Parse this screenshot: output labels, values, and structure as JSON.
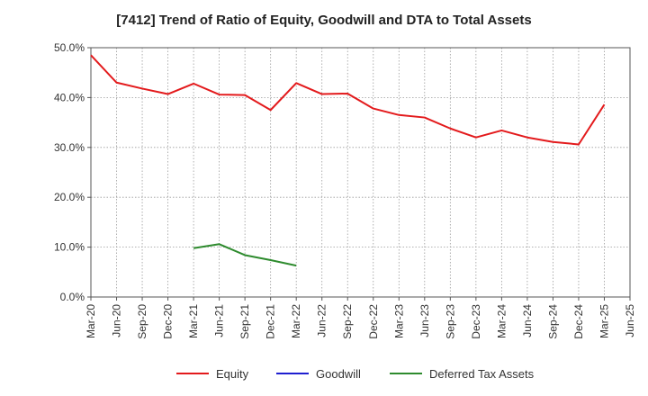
{
  "chart_data": {
    "type": "line",
    "title": "[7412]  Trend of Ratio of Equity, Goodwill and DTA to Total Assets",
    "xlabel": "",
    "ylabel": "",
    "ylim": [
      0,
      50
    ],
    "yticks": [
      "0.0%",
      "10.0%",
      "20.0%",
      "30.0%",
      "40.0%",
      "50.0%"
    ],
    "x": [
      "Mar-20",
      "Jun-20",
      "Sep-20",
      "Dec-20",
      "Mar-21",
      "Jun-21",
      "Sep-21",
      "Dec-21",
      "Mar-22",
      "Jun-22",
      "Sep-22",
      "Dec-22",
      "Mar-23",
      "Jun-23",
      "Sep-23",
      "Dec-23",
      "Mar-24",
      "Jun-24",
      "Sep-24",
      "Dec-24",
      "Mar-25",
      "Jun-25"
    ],
    "grid": true,
    "legend_position": "bottom",
    "series": [
      {
        "name": "Equity",
        "color": "#e31a1c",
        "values": [
          48.5,
          43.0,
          41.8,
          40.7,
          42.8,
          40.6,
          40.5,
          37.5,
          42.9,
          40.7,
          40.8,
          37.8,
          36.5,
          36.0,
          33.8,
          32.0,
          33.4,
          32.0,
          31.1,
          30.6,
          38.6,
          null
        ]
      },
      {
        "name": "Goodwill",
        "color": "#1f1fd0",
        "values": [
          null,
          null,
          null,
          null,
          null,
          null,
          null,
          null,
          null,
          null,
          null,
          null,
          null,
          null,
          null,
          null,
          null,
          null,
          null,
          null,
          null,
          null
        ]
      },
      {
        "name": "Deferred Tax Assets",
        "color": "#2e8b2e",
        "values": [
          null,
          null,
          null,
          null,
          9.8,
          10.6,
          8.4,
          7.4,
          6.3,
          null,
          null,
          null,
          null,
          null,
          null,
          null,
          null,
          null,
          null,
          null,
          null,
          null
        ]
      }
    ]
  }
}
